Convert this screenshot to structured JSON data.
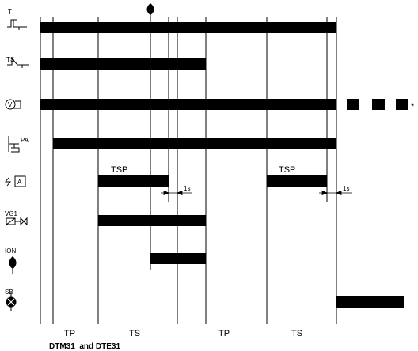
{
  "signals": [
    {
      "id": "thermostat",
      "icon": "thermostat-contact-icon",
      "icon_label": "T"
    },
    {
      "id": "safety-thermostat",
      "icon": "safety-thermostat-contact-icon",
      "icon_label": "TS"
    },
    {
      "id": "fan",
      "icon": "fan-motor-icon",
      "icon_label": "V"
    },
    {
      "id": "air-pressure-switch",
      "icon": "air-pressure-switch-icon",
      "icon_label": "PA"
    },
    {
      "id": "ignition-transformer",
      "icon": "ignition-transformer-icon",
      "icon_label": "A"
    },
    {
      "id": "gas-valve",
      "icon": "gas-valve-icon",
      "icon_label": "VG1"
    },
    {
      "id": "ionisation-flame",
      "icon": "ionisation-flame-icon",
      "icon_label": "ION"
    },
    {
      "id": "lockout-lamp",
      "icon": "lockout-lamp-icon",
      "icon_label": "SB"
    }
  ],
  "annotations": {
    "tsp_1": "TSP",
    "tsp_2": "TSP",
    "delay_1": "1s",
    "delay_2": "1s",
    "continuation_mark": "*"
  },
  "phases": [
    "TP",
    "TS",
    "TP",
    "TS"
  ],
  "caption": "DTM31  and DTE31"
}
